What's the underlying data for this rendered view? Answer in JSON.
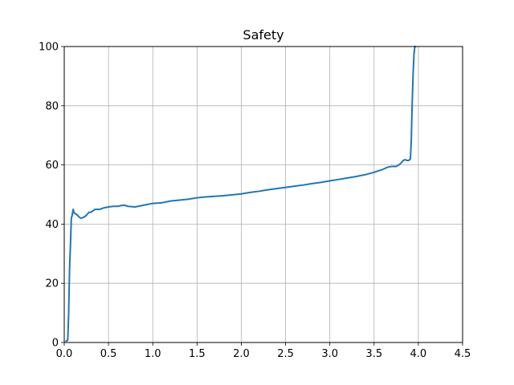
{
  "chart_data": {
    "type": "line",
    "title": "Safety",
    "xlabel": "",
    "ylabel": "",
    "xlim": [
      0,
      4.5
    ],
    "ylim": [
      0,
      100
    ],
    "xticks": [
      0.0,
      0.5,
      1.0,
      1.5,
      2.0,
      2.5,
      3.0,
      3.5,
      4.0,
      4.5
    ],
    "xtick_labels": [
      "0.0",
      "0.5",
      "1.0",
      "1.5",
      "2.0",
      "2.5",
      "3.0",
      "3.5",
      "4.0",
      "4.5"
    ],
    "yticks": [
      0,
      20,
      40,
      60,
      80,
      100
    ],
    "ytick_labels": [
      "0",
      "20",
      "40",
      "60",
      "80",
      "100"
    ],
    "grid": true,
    "series": [
      {
        "color": "#1f77b4",
        "x": [
          0.02,
          0.03,
          0.04,
          0.05,
          0.06,
          0.07,
          0.08,
          0.09,
          0.1,
          0.11,
          0.12,
          0.13,
          0.15,
          0.17,
          0.19,
          0.21,
          0.23,
          0.25,
          0.28,
          0.3,
          0.35,
          0.4,
          0.45,
          0.5,
          0.55,
          0.6,
          0.65,
          0.68,
          0.72,
          0.8,
          0.9,
          1.0,
          1.1,
          1.2,
          1.3,
          1.4,
          1.5,
          1.6,
          1.7,
          1.8,
          1.9,
          2.0,
          2.1,
          2.2,
          2.3,
          2.4,
          2.5,
          2.6,
          2.7,
          2.8,
          2.9,
          3.0,
          3.1,
          3.2,
          3.3,
          3.4,
          3.5,
          3.55,
          3.6,
          3.65,
          3.7,
          3.75,
          3.78,
          3.8,
          3.83,
          3.85,
          3.87,
          3.89,
          3.91,
          3.92,
          3.93,
          3.94,
          3.95,
          3.96,
          3.97
        ],
        "y": [
          0.5,
          0.5,
          1.0,
          10,
          25,
          33,
          42,
          43,
          45,
          44,
          43.5,
          43.5,
          43,
          42.3,
          42,
          42.2,
          42.5,
          43,
          44,
          44,
          45,
          45,
          45.5,
          45.8,
          46,
          46,
          46.3,
          46.4,
          46,
          45.8,
          46.4,
          47,
          47.2,
          47.8,
          48.1,
          48.4,
          48.9,
          49.2,
          49.4,
          49.6,
          49.9,
          50.2,
          50.7,
          51.1,
          51.6,
          52,
          52.4,
          52.8,
          53.2,
          53.7,
          54.1,
          54.6,
          55.1,
          55.6,
          56.1,
          56.7,
          57.5,
          58,
          58.5,
          59.2,
          59.5,
          59.5,
          60,
          60.5,
          61.5,
          61.8,
          61.5,
          61.5,
          62,
          68,
          80,
          90,
          97,
          100,
          100
        ]
      }
    ]
  }
}
